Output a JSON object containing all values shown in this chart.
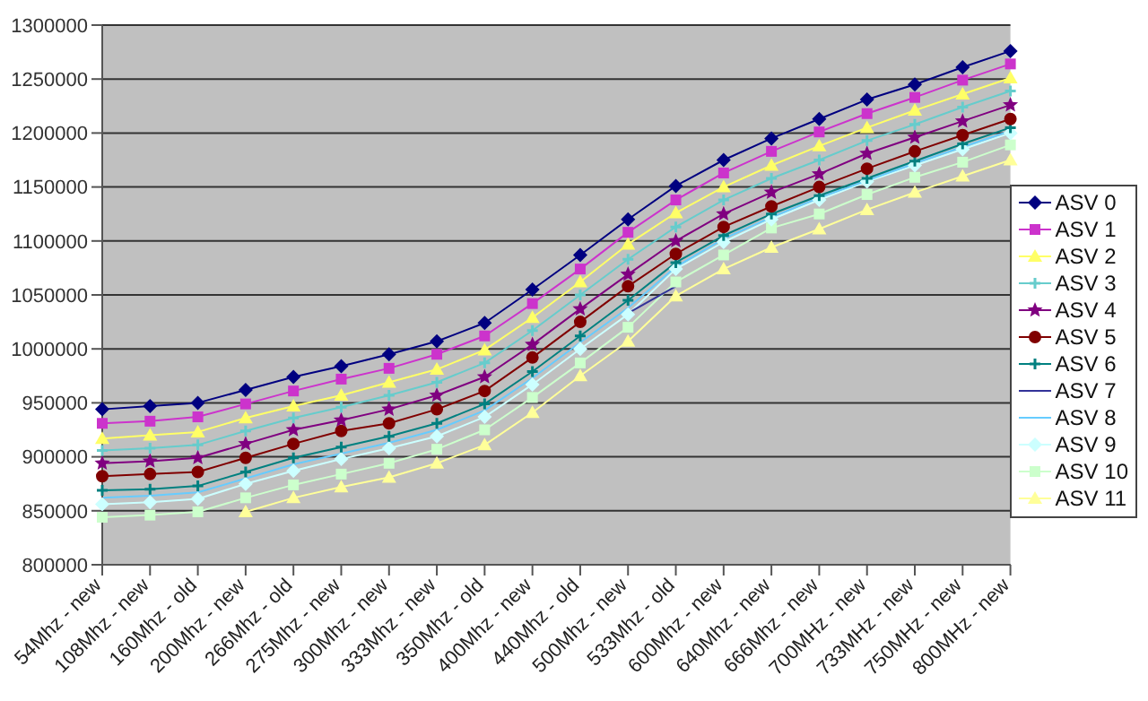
{
  "chart_data": {
    "type": "line",
    "categories": [
      "54Mhz - new",
      "108Mhz - new",
      "160Mhz - old",
      "200Mhz - new",
      "266Mhz - old",
      "275Mhz - new",
      "300Mhz - new",
      "333Mhz - new",
      "350Mhz - old",
      "400Mhz - new",
      "440Mhz - old",
      "500Mhz - new",
      "533Mhz - old",
      "600Mhz - new",
      "640Mhz - new",
      "666Mhz - new",
      "700MHz - new",
      "733MHz - new",
      "750MHz - new",
      "800MHz - new"
    ],
    "series": [
      {
        "name": "ASV 0",
        "color": "#000080",
        "marker": "diamond",
        "values": [
          944000,
          947000,
          950000,
          962000,
          974000,
          984000,
          995000,
          1007000,
          1024000,
          1055000,
          1087000,
          1120000,
          1151000,
          1175000,
          1195000,
          1213000,
          1231000,
          1245000,
          1261000,
          1276000
        ]
      },
      {
        "name": "ASV 1",
        "color": "#cc33cc",
        "marker": "square",
        "values": [
          931000,
          933000,
          937000,
          949000,
          961000,
          972000,
          982000,
          995000,
          1012000,
          1042000,
          1074000,
          1108000,
          1138000,
          1163000,
          1183000,
          1201000,
          1218000,
          1233000,
          1249000,
          1264000
        ]
      },
      {
        "name": "ASV 2",
        "color": "#ffff66",
        "marker": "triangle",
        "values": [
          917000,
          920000,
          923000,
          936000,
          947000,
          957000,
          969000,
          981000,
          999000,
          1029000,
          1062000,
          1097000,
          1126000,
          1150000,
          1170000,
          1188000,
          1205000,
          1221000,
          1236000,
          1251000
        ]
      },
      {
        "name": "ASV 3",
        "color": "#66cccc",
        "marker": "cross",
        "values": [
          906000,
          908000,
          911000,
          924000,
          936000,
          946000,
          957000,
          969000,
          987000,
          1017000,
          1050000,
          1083000,
          1113000,
          1138000,
          1158000,
          1175000,
          1193000,
          1208000,
          1224000,
          1239000
        ]
      },
      {
        "name": "ASV 4",
        "color": "#800080",
        "marker": "star",
        "values": [
          894000,
          896000,
          899000,
          912000,
          925000,
          934000,
          944000,
          957000,
          974000,
          1004000,
          1037000,
          1069000,
          1100000,
          1125000,
          1145000,
          1162000,
          1181000,
          1196000,
          1211000,
          1226000
        ]
      },
      {
        "name": "ASV 5",
        "color": "#800000",
        "marker": "circle",
        "values": [
          882000,
          884000,
          886000,
          899000,
          912000,
          924000,
          931000,
          944000,
          961000,
          992000,
          1025000,
          1058000,
          1088000,
          1113000,
          1132000,
          1150000,
          1167000,
          1183000,
          1198000,
          1213000
        ]
      },
      {
        "name": "ASV 6",
        "color": "#008080",
        "marker": "cross",
        "values": [
          869000,
          870000,
          873000,
          886000,
          899000,
          909000,
          919000,
          931000,
          949000,
          979000,
          1012000,
          1045000,
          1080000,
          1105000,
          1125000,
          1142000,
          1158000,
          1174000,
          1190000,
          1205000
        ]
      },
      {
        "name": "ASV 7",
        "color": "#333399",
        "marker": "none",
        "values": [
          null,
          null,
          null,
          null,
          null,
          null,
          null,
          null,
          null,
          null,
          null,
          1033000,
          1058000,
          null,
          null,
          null,
          null,
          null,
          null,
          null
        ]
      },
      {
        "name": "ASV 8",
        "color": "#66ccff",
        "marker": "none",
        "values": [
          862000,
          864000,
          867000,
          880000,
          893000,
          903000,
          913000,
          925000,
          943000,
          973000,
          1006000,
          1038000,
          1076000,
          1102000,
          1122000,
          1140000,
          1156000,
          1172000,
          1187000,
          1202000
        ]
      },
      {
        "name": "ASV 9",
        "color": "#ccffff",
        "marker": "diamond",
        "values": [
          856000,
          858000,
          861000,
          875000,
          887000,
          898000,
          908000,
          919000,
          937000,
          967000,
          1000000,
          1032000,
          1074000,
          1099000,
          1120000,
          1138000,
          1155000,
          1170000,
          1185000,
          1200000
        ]
      },
      {
        "name": "ASV 10",
        "color": "#ccffcc",
        "marker": "square",
        "values": [
          844000,
          846000,
          849000,
          862000,
          874000,
          884000,
          894000,
          907000,
          925000,
          955000,
          987000,
          1020000,
          1062000,
          1087000,
          1112000,
          1125000,
          1143000,
          1159000,
          1173000,
          1189000
        ]
      },
      {
        "name": "ASV 11",
        "color": "#ffff99",
        "marker": "triangle",
        "values": [
          null,
          null,
          null,
          849000,
          862000,
          872000,
          881000,
          894000,
          911000,
          941000,
          975000,
          1007000,
          1049000,
          1074000,
          1094000,
          1111000,
          1129000,
          1145000,
          1160000,
          1175000
        ]
      }
    ],
    "ylim": [
      800000,
      1300000
    ],
    "yticks": [
      800000,
      850000,
      900000,
      950000,
      1000000,
      1050000,
      1100000,
      1150000,
      1200000,
      1250000,
      1300000
    ],
    "grid": "y",
    "legend": "right"
  }
}
